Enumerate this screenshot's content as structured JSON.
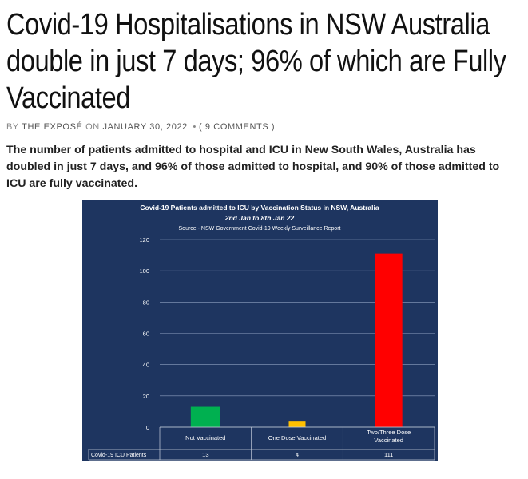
{
  "article": {
    "headline": "Covid-19 Hospitalisations in NSW Australia double in just 7 days; 96% of which are Fully Vaccinated",
    "byline": {
      "by": "BY",
      "author": "THE EXPOSÉ",
      "on": "ON",
      "date": "JANUARY 30, 2022",
      "bullet": "•",
      "comments": "( 9 COMMENTS )"
    },
    "summary": "The number of patients admitted to hospital and ICU in New South Wales, Australia has doubled in just 7 days, and 96% of those admitted to hospital, and 90% of those admitted to ICU are fully vaccinated."
  },
  "chart_data": {
    "type": "bar",
    "title": "Covid-19 Patients admitted to ICU by Vaccination Status in NSW, Australia",
    "subtitle": "2nd Jan to 8th Jan 22",
    "source": "Source - NSW Government Covid-19 Weekly Surveillance Report",
    "categories": [
      "Not Vaccinated",
      "One Dose Vaccinated",
      "Two/Three Dose Vaccinated"
    ],
    "series": [
      {
        "name": "Covid-19 ICU Patients",
        "values": [
          13,
          4,
          111
        ],
        "colors": [
          "#00b050",
          "#ffc000",
          "#ff0000"
        ]
      }
    ],
    "yticks": [
      "0",
      "20",
      "40",
      "60",
      "80",
      "100",
      "120"
    ],
    "ylim": [
      0,
      120
    ],
    "grid": true,
    "table_row_label": "Covid-19 ICU Patients",
    "table_values": [
      "13",
      "4",
      "111"
    ],
    "background": "#1e3560"
  }
}
